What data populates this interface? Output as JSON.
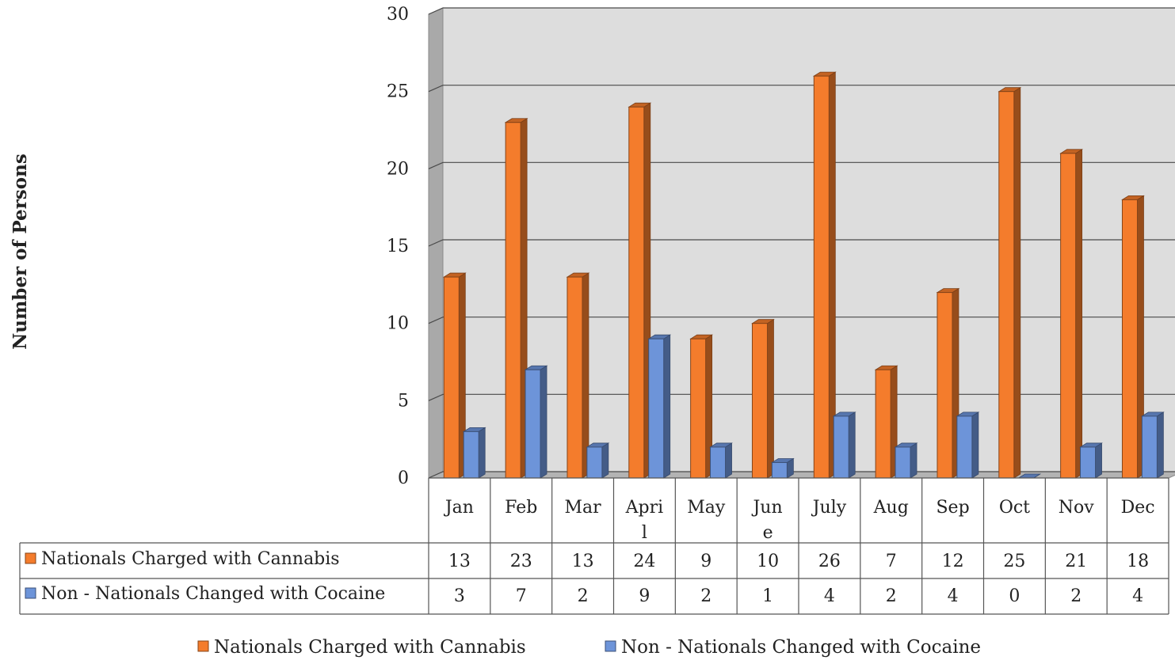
{
  "chart_data": {
    "type": "bar",
    "title": "",
    "xlabel": "",
    "ylabel": "Number of Persons",
    "ylim": [
      0,
      30
    ],
    "ytick_step": 5,
    "grid": true,
    "three_d": true,
    "legend_position": "bottom",
    "categories": [
      "Jan",
      "Feb",
      "Mar",
      "April",
      "May",
      "June",
      "July",
      "Aug",
      "Sep",
      "Oct",
      "Nov",
      "Dec"
    ],
    "category_display": [
      [
        "Jan"
      ],
      [
        "Feb"
      ],
      [
        "Mar"
      ],
      [
        "Apri",
        "l"
      ],
      [
        "May"
      ],
      [
        "Jun",
        "e"
      ],
      [
        "July"
      ],
      [
        "Aug"
      ],
      [
        "Sep"
      ],
      [
        "Oct"
      ],
      [
        "Nov"
      ],
      [
        "Dec"
      ]
    ],
    "series": [
      {
        "name": "Nationals Charged with Cannabis",
        "values": [
          13,
          23,
          13,
          24,
          9,
          10,
          26,
          7,
          12,
          25,
          21,
          18
        ],
        "color": "#f47c2c"
      },
      {
        "name": "Non - Nationals Changed with Cocaine",
        "values": [
          3,
          7,
          2,
          9,
          2,
          1,
          4,
          2,
          4,
          0,
          2,
          4
        ],
        "color": "#6d94d9"
      }
    ],
    "data_table": true
  }
}
